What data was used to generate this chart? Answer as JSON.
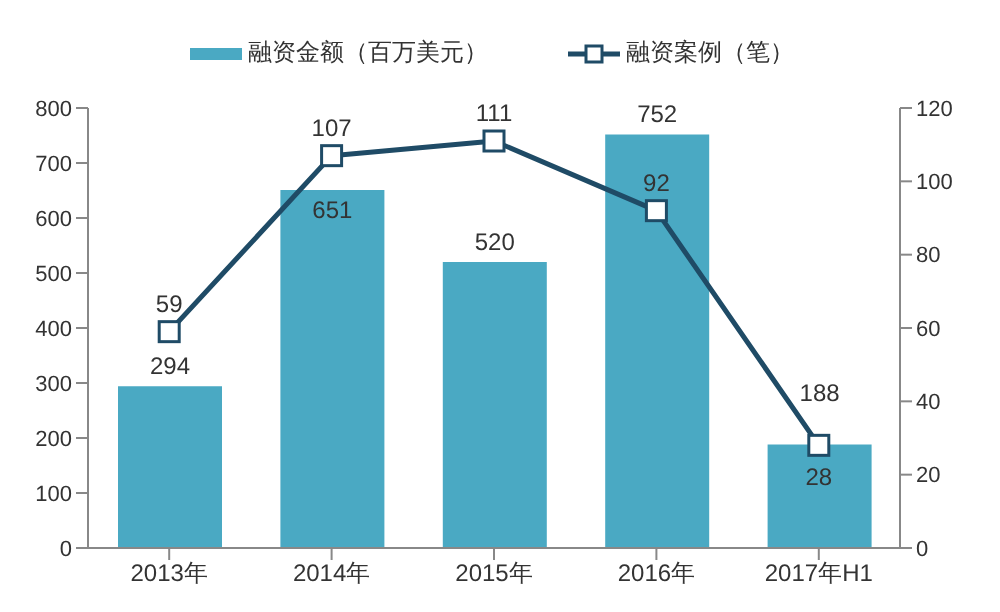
{
  "chart_data": {
    "type": "bar",
    "categories": [
      "2013年",
      "2014年",
      "2015年",
      "2016年",
      "2017年H1"
    ],
    "series": [
      {
        "name": "融资金额（百万美元）",
        "color": "#4aa9c3",
        "values": [
          294,
          651,
          520,
          752,
          188
        ]
      },
      {
        "name": "融资案例（笔）",
        "type": "line",
        "axis": "y2",
        "color": "#1f4b66",
        "marker": "square",
        "values": [
          59,
          107,
          111,
          92,
          28
        ]
      }
    ],
    "ylim": [
      0,
      800
    ],
    "yticks": [
      0,
      100,
      200,
      300,
      400,
      500,
      600,
      700,
      800
    ],
    "y2lim": [
      0,
      120
    ],
    "y2ticks": [
      0,
      20,
      40,
      60,
      80,
      100,
      120
    ],
    "data_labels": true,
    "legend": "top",
    "grid": false
  }
}
